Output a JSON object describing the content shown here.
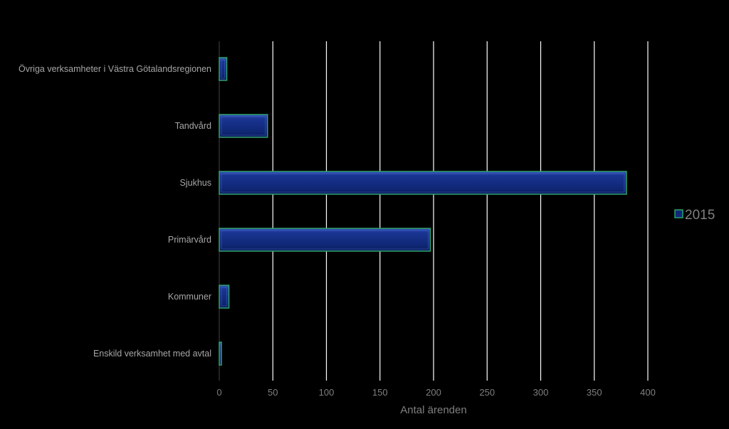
{
  "chart_data": {
    "type": "bar",
    "orientation": "horizontal",
    "categories": [
      "Övriga verksamheter i Västra Götalandsregionen",
      "Tandvård",
      "Sjukhus",
      "Primärvård",
      "Kommuner",
      "Enskild verksamhet med avtal"
    ],
    "series": [
      {
        "name": "2015",
        "values": [
          7,
          45,
          380,
          197,
          9,
          2
        ]
      }
    ],
    "x_ticks": [
      "0",
      "50",
      "100",
      "150",
      "200",
      "250",
      "300",
      "350",
      "400"
    ],
    "xlim": [
      0,
      400
    ],
    "xlabel": "Antal ärenden",
    "ylabel": "",
    "title": "",
    "grid": "vertical",
    "legend_position": "right",
    "colors": {
      "bar_fill": "#10287a",
      "bar_highlight": "#2a4bb0",
      "bar_border": "#2fa36b",
      "grid": "#ffffff",
      "background": "#000000"
    }
  }
}
